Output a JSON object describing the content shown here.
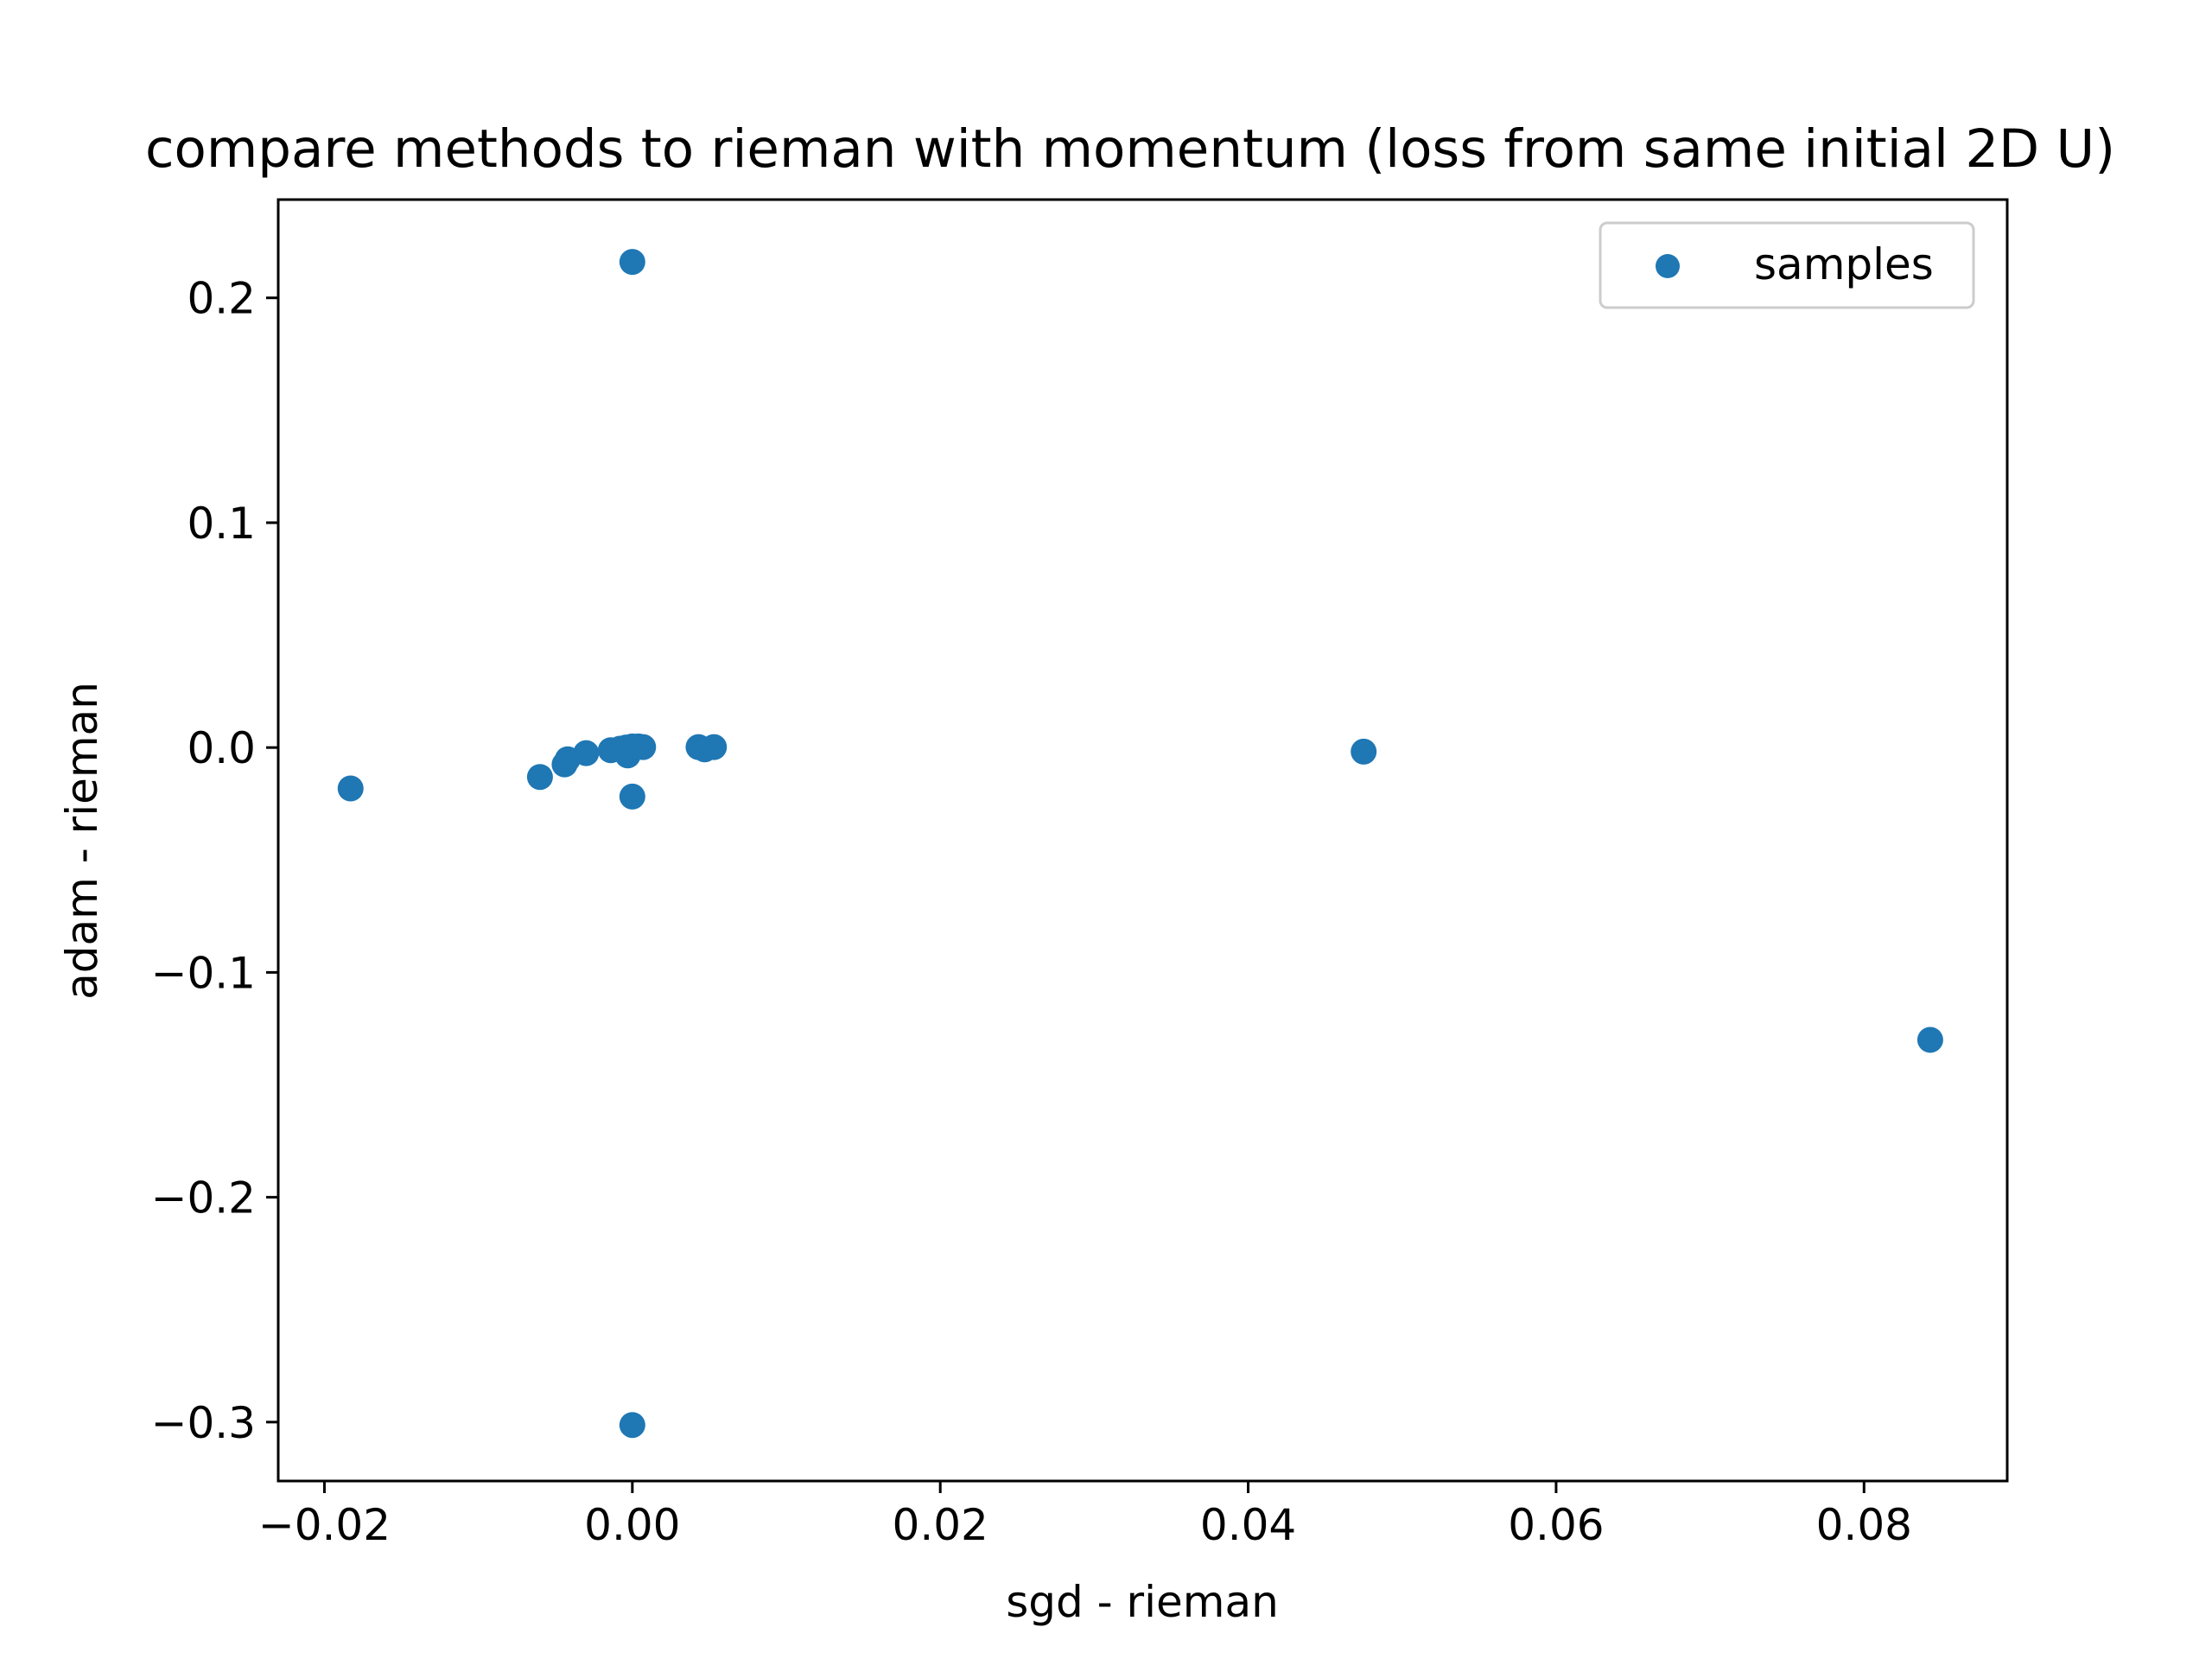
{
  "chart_data": {
    "type": "scatter",
    "title": "compare methods to rieman with momentum (loss from same initial 2D U)",
    "xlabel": "sgd - rieman",
    "ylabel": "adam - rieman",
    "xlim": [
      -0.023,
      0.0893
    ],
    "ylim": [
      -0.3262,
      0.2437
    ],
    "xticks": [
      -0.02,
      0.0,
      0.02,
      0.04,
      0.06,
      0.08
    ],
    "xtick_labels": [
      "−0.02",
      "0.00",
      "0.02",
      "0.04",
      "0.06",
      "0.08"
    ],
    "yticks": [
      -0.3,
      -0.2,
      -0.1,
      0.0,
      0.1,
      0.2
    ],
    "ytick_labels": [
      "−0.3",
      "−0.2",
      "−0.1",
      "0.0",
      "0.1",
      "0.2"
    ],
    "grid": false,
    "legend": {
      "position": "top-right",
      "entries": [
        "samples"
      ]
    },
    "color": "#1f77b4",
    "series": [
      {
        "name": "samples",
        "points": [
          [
            0.0,
            0.216
          ],
          [
            -0.0183,
            -0.0182
          ],
          [
            -0.006,
            -0.0131
          ],
          [
            -0.0044,
            -0.0075
          ],
          [
            -0.0042,
            -0.0052
          ],
          [
            -0.003,
            -0.0025
          ],
          [
            -0.0014,
            -0.0012
          ],
          [
            -0.0008,
            -0.0005
          ],
          [
            -0.0004,
            0.0
          ],
          [
            -0.0003,
            -0.0035
          ],
          [
            0.0,
            0.0005
          ],
          [
            0.0004,
            0.0005
          ],
          [
            0.0007,
            0.0002
          ],
          [
            0.0043,
            0.0002
          ],
          [
            0.0047,
            -0.0008
          ],
          [
            0.0053,
            0.0002
          ],
          [
            0.0,
            -0.0218
          ],
          [
            0.0475,
            -0.0018
          ],
          [
            0.0843,
            -0.13
          ],
          [
            0.0,
            -0.3013
          ]
        ]
      }
    ]
  }
}
